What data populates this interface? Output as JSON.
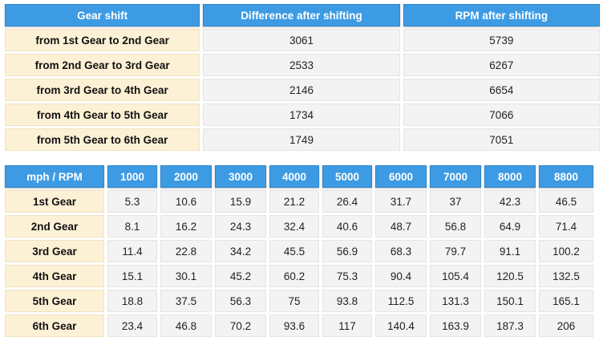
{
  "shift_table": {
    "headers": [
      "Gear shift",
      "Difference after shifting",
      "RPM after shifting"
    ],
    "rows": [
      {
        "label": "from 1st Gear to 2nd Gear",
        "difference": "3061",
        "rpm": "5739"
      },
      {
        "label": "from 2nd Gear to 3rd Gear",
        "difference": "2533",
        "rpm": "6267"
      },
      {
        "label": "from 3rd Gear to 4th Gear",
        "difference": "2146",
        "rpm": "6654"
      },
      {
        "label": "from 4th Gear to 5th Gear",
        "difference": "1734",
        "rpm": "7066"
      },
      {
        "label": "from 5th Gear to 6th Gear",
        "difference": "1749",
        "rpm": "7051"
      }
    ]
  },
  "speed_table": {
    "corner_header": "mph / RPM",
    "rpm_headers": [
      "1000",
      "2000",
      "3000",
      "4000",
      "5000",
      "6000",
      "7000",
      "8000",
      "8800"
    ],
    "rows": [
      {
        "gear": "1st Gear",
        "values": [
          "5.3",
          "10.6",
          "15.9",
          "21.2",
          "26.4",
          "31.7",
          "37",
          "42.3",
          "46.5"
        ]
      },
      {
        "gear": "2nd Gear",
        "values": [
          "8.1",
          "16.2",
          "24.3",
          "32.4",
          "40.6",
          "48.7",
          "56.8",
          "64.9",
          "71.4"
        ]
      },
      {
        "gear": "3rd Gear",
        "values": [
          "11.4",
          "22.8",
          "34.2",
          "45.5",
          "56.9",
          "68.3",
          "79.7",
          "91.1",
          "100.2"
        ]
      },
      {
        "gear": "4th Gear",
        "values": [
          "15.1",
          "30.1",
          "45.2",
          "60.2",
          "75.3",
          "90.4",
          "105.4",
          "120.5",
          "132.5"
        ]
      },
      {
        "gear": "5th Gear",
        "values": [
          "18.8",
          "37.5",
          "56.3",
          "75",
          "93.8",
          "112.5",
          "131.3",
          "150.1",
          "165.1"
        ]
      },
      {
        "gear": "6th Gear",
        "values": [
          "23.4",
          "46.8",
          "70.2",
          "93.6",
          "117",
          "140.4",
          "163.9",
          "187.3",
          "206"
        ]
      }
    ]
  },
  "colors": {
    "header_blue": "#3d9be3",
    "label_cream": "#fdf1d5",
    "cell_gray": "#f3f3f3"
  }
}
